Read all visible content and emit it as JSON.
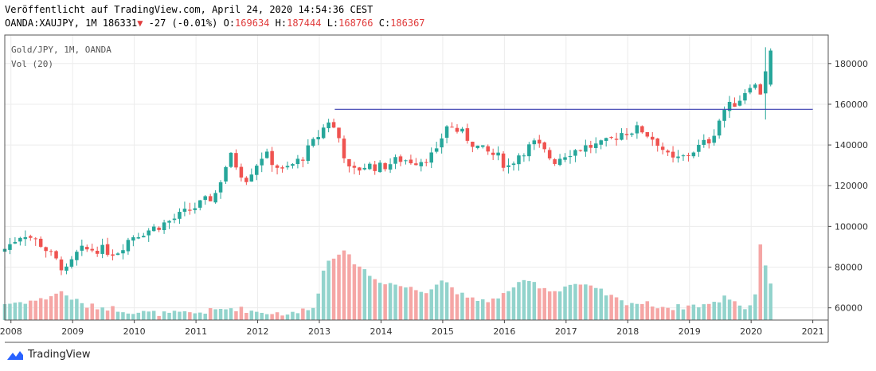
{
  "header": {
    "line1": "Veröffentlicht auf TradingView.com, April 24, 2020 14:54:36 CEST",
    "symbol": "OANDA:XAUJPY, 1M",
    "last": "186331",
    "change": "-27 (-0.01%)",
    "o_label": "O:",
    "o_value": "169634",
    "h_label": "H:",
    "h_value": "187444",
    "l_label": "L:",
    "l_value": "168766",
    "c_label": "C:",
    "c_value": "186367"
  },
  "legend": {
    "series_title": "Gold/JPY, 1M, OANDA",
    "volume_title": "Vol (20)"
  },
  "footer": {
    "brand": "TradingView"
  },
  "colors": {
    "up": "#26a69a",
    "down": "#ef5350",
    "level_line": "#3a3fb0",
    "grid": "#ececec"
  },
  "chart_data": {
    "type": "candlestick",
    "interval": "1M",
    "ylim": [
      54000,
      194000
    ],
    "y_ticks": [
      "60000",
      "80000",
      "100000",
      "120000",
      "140000",
      "160000",
      "180000"
    ],
    "x_ticks": [
      "2008",
      "2009",
      "2010",
      "2011",
      "2012",
      "2013",
      "2014",
      "2015",
      "2016",
      "2017",
      "2018",
      "2019",
      "2020",
      "2021"
    ],
    "x_range": [
      2007.9,
      2021.25
    ],
    "horizontal_line": {
      "value": 157500,
      "from": 2013.25,
      "to": 2021.0
    },
    "anchors": [
      [
        2007.9,
        89000
      ],
      [
        2008.2,
        97000
      ],
      [
        2008.5,
        91000
      ],
      [
        2008.7,
        84000
      ],
      [
        2008.9,
        78000
      ],
      [
        2009.1,
        88000
      ],
      [
        2009.4,
        89000
      ],
      [
        2009.7,
        87000
      ],
      [
        2009.95,
        95000
      ],
      [
        2010.3,
        99000
      ],
      [
        2010.6,
        103000
      ],
      [
        2010.9,
        108000
      ],
      [
        2011.3,
        115000
      ],
      [
        2011.55,
        135000
      ],
      [
        2011.8,
        123000
      ],
      [
        2012.1,
        136000
      ],
      [
        2012.4,
        127000
      ],
      [
        2012.7,
        133000
      ],
      [
        2012.9,
        141000
      ],
      [
        2013.15,
        152000
      ],
      [
        2013.3,
        145000
      ],
      [
        2013.5,
        126000
      ],
      [
        2013.75,
        130000
      ],
      [
        2014.0,
        129000
      ],
      [
        2014.3,
        133000
      ],
      [
        2014.6,
        132000
      ],
      [
        2014.9,
        136000
      ],
      [
        2015.05,
        150000
      ],
      [
        2015.3,
        146000
      ],
      [
        2015.6,
        138000
      ],
      [
        2015.9,
        134000
      ],
      [
        2016.05,
        129000
      ],
      [
        2016.25,
        136000
      ],
      [
        2016.5,
        141000
      ],
      [
        2016.8,
        132000
      ],
      [
        2017.0,
        136000
      ],
      [
        2017.3,
        139000
      ],
      [
        2017.6,
        140000
      ],
      [
        2017.9,
        146000
      ],
      [
        2018.2,
        148000
      ],
      [
        2018.5,
        141000
      ],
      [
        2018.7,
        132000
      ],
      [
        2018.9,
        134000
      ],
      [
        2019.1,
        138000
      ],
      [
        2019.35,
        143000
      ],
      [
        2019.55,
        157000
      ],
      [
        2019.8,
        162000
      ],
      [
        2020.0,
        171000
      ],
      [
        2020.15,
        166000
      ],
      [
        2020.3,
        186367
      ]
    ],
    "volume_anchors": [
      [
        2007.9,
        62000
      ],
      [
        2008.5,
        64000
      ],
      [
        2008.8,
        68000
      ],
      [
        2009.2,
        61000
      ],
      [
        2009.6,
        60000
      ],
      [
        2010.0,
        58000
      ],
      [
        2010.5,
        57000
      ],
      [
        2011.0,
        57500
      ],
      [
        2011.6,
        60000
      ],
      [
        2012.0,
        58000
      ],
      [
        2012.6,
        57000
      ],
      [
        2012.95,
        62000
      ],
      [
        2013.1,
        83000
      ],
      [
        2013.35,
        88000
      ],
      [
        2013.6,
        82000
      ],
      [
        2013.9,
        74000
      ],
      [
        2014.3,
        71000
      ],
      [
        2014.7,
        68000
      ],
      [
        2015.0,
        74000
      ],
      [
        2015.4,
        64000
      ],
      [
        2015.9,
        64000
      ],
      [
        2016.1,
        70000
      ],
      [
        2016.4,
        73000
      ],
      [
        2016.8,
        68000
      ],
      [
        2017.1,
        72000
      ],
      [
        2017.5,
        69000
      ],
      [
        2017.9,
        63000
      ],
      [
        2018.3,
        62000
      ],
      [
        2018.7,
        60000
      ],
      [
        2019.0,
        61000
      ],
      [
        2019.4,
        62000
      ],
      [
        2019.6,
        66000
      ],
      [
        2019.9,
        60000
      ],
      [
        2020.05,
        62000
      ],
      [
        2020.15,
        92000
      ],
      [
        2020.3,
        72000
      ]
    ]
  }
}
